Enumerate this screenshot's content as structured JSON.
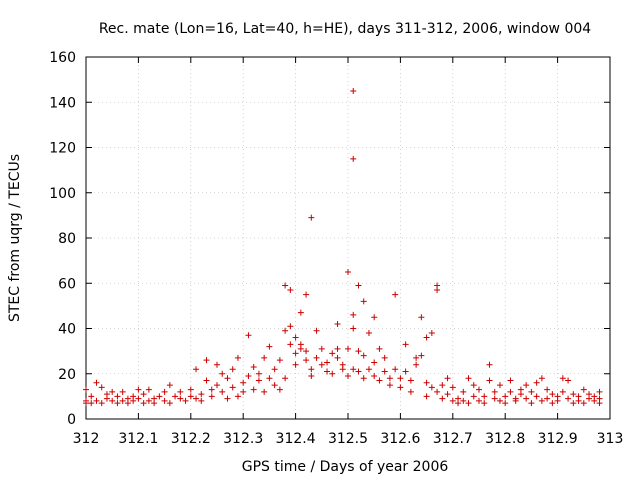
{
  "chart_data": {
    "type": "scatter",
    "title": "Rec. mate (Lon=16, Lat=40, h=HE), days 311-312, 2006, window 004",
    "xlabel": "GPS time / Days of year 2006",
    "ylabel": "STEC from uqrg / TECUs",
    "xlim": [
      312,
      313
    ],
    "ylim": [
      0,
      160
    ],
    "xticks": [
      312,
      312.1,
      312.2,
      312.3,
      312.4,
      312.5,
      312.6,
      312.7,
      312.8,
      312.9,
      313
    ],
    "xtick_labels": [
      "312",
      "312.1",
      "312.2",
      "312.3",
      "312.4",
      "312.5",
      "312.6",
      "312.7",
      "312.8",
      "312.9",
      "313"
    ],
    "yticks": [
      0,
      20,
      40,
      60,
      80,
      100,
      120,
      140,
      160
    ],
    "ytick_labels": [
      "0",
      "20",
      "40",
      "60",
      "80",
      "100",
      "120",
      "140",
      "160"
    ],
    "grid": true,
    "legend": "none",
    "marker_color": "#cc0000",
    "series": [
      {
        "marker": "plus",
        "points": [
          [
            312.0,
            7
          ],
          [
            312.0,
            8
          ],
          [
            312.0,
            13
          ],
          [
            312.01,
            7
          ],
          [
            312.01,
            10
          ],
          [
            312.02,
            16
          ],
          [
            312.02,
            8
          ],
          [
            312.03,
            7
          ],
          [
            312.03,
            14
          ],
          [
            312.04,
            9
          ],
          [
            312.04,
            11
          ],
          [
            312.05,
            8
          ],
          [
            312.05,
            12
          ],
          [
            312.06,
            7
          ],
          [
            312.06,
            10
          ],
          [
            312.07,
            8
          ],
          [
            312.07,
            12
          ],
          [
            312.08,
            9
          ],
          [
            312.08,
            7
          ],
          [
            312.09,
            10
          ],
          [
            312.09,
            8
          ],
          [
            312.1,
            13
          ],
          [
            312.1,
            9
          ],
          [
            312.11,
            7
          ],
          [
            312.11,
            11
          ],
          [
            312.12,
            8
          ],
          [
            312.12,
            13
          ],
          [
            312.13,
            9
          ],
          [
            312.13,
            7
          ],
          [
            312.14,
            10
          ],
          [
            312.15,
            12
          ],
          [
            312.15,
            8
          ],
          [
            312.16,
            15
          ],
          [
            312.16,
            7
          ],
          [
            312.17,
            10
          ],
          [
            312.18,
            9
          ],
          [
            312.18,
            12
          ],
          [
            312.19,
            8
          ],
          [
            312.2,
            10
          ],
          [
            312.2,
            13
          ],
          [
            312.21,
            9
          ],
          [
            312.21,
            22
          ],
          [
            312.22,
            11
          ],
          [
            312.22,
            8
          ],
          [
            312.23,
            17
          ],
          [
            312.23,
            26
          ],
          [
            312.24,
            13
          ],
          [
            312.24,
            10
          ],
          [
            312.25,
            24
          ],
          [
            312.25,
            15
          ],
          [
            312.26,
            12
          ],
          [
            312.26,
            20
          ],
          [
            312.27,
            9
          ],
          [
            312.27,
            18
          ],
          [
            312.28,
            14
          ],
          [
            312.28,
            22
          ],
          [
            312.29,
            10
          ],
          [
            312.29,
            27
          ],
          [
            312.3,
            16
          ],
          [
            312.3,
            12
          ],
          [
            312.31,
            37
          ],
          [
            312.31,
            19
          ],
          [
            312.32,
            13
          ],
          [
            312.32,
            23
          ],
          [
            312.33,
            17
          ],
          [
            312.33,
            20
          ],
          [
            312.34,
            12
          ],
          [
            312.34,
            27
          ],
          [
            312.35,
            18
          ],
          [
            312.35,
            32
          ],
          [
            312.36,
            15
          ],
          [
            312.36,
            22
          ],
          [
            312.37,
            13
          ],
          [
            312.37,
            26
          ],
          [
            312.38,
            39
          ],
          [
            312.38,
            59
          ],
          [
            312.38,
            18
          ],
          [
            312.39,
            33
          ],
          [
            312.39,
            57
          ],
          [
            312.39,
            41
          ],
          [
            312.4,
            29
          ],
          [
            312.4,
            36
          ],
          [
            312.4,
            24
          ],
          [
            312.41,
            47
          ],
          [
            312.41,
            31
          ],
          [
            312.41,
            33
          ],
          [
            312.42,
            26
          ],
          [
            312.42,
            30
          ],
          [
            312.42,
            55
          ],
          [
            312.43,
            22
          ],
          [
            312.43,
            89
          ],
          [
            312.43,
            19
          ],
          [
            312.44,
            39
          ],
          [
            312.44,
            27
          ],
          [
            312.45,
            24
          ],
          [
            312.45,
            31
          ],
          [
            312.46,
            21
          ],
          [
            312.46,
            25
          ],
          [
            312.47,
            29
          ],
          [
            312.47,
            20
          ],
          [
            312.48,
            42
          ],
          [
            312.48,
            31
          ],
          [
            312.48,
            27
          ],
          [
            312.49,
            24
          ],
          [
            312.49,
            22
          ],
          [
            312.5,
            65
          ],
          [
            312.5,
            31
          ],
          [
            312.5,
            19
          ],
          [
            312.51,
            40
          ],
          [
            312.51,
            46
          ],
          [
            312.51,
            22
          ],
          [
            312.51,
            145
          ],
          [
            312.51,
            115
          ],
          [
            312.52,
            30
          ],
          [
            312.52,
            59
          ],
          [
            312.52,
            21
          ],
          [
            312.53,
            52
          ],
          [
            312.53,
            28
          ],
          [
            312.53,
            18
          ],
          [
            312.54,
            38
          ],
          [
            312.54,
            22
          ],
          [
            312.55,
            45
          ],
          [
            312.55,
            25
          ],
          [
            312.55,
            19
          ],
          [
            312.56,
            31
          ],
          [
            312.56,
            17
          ],
          [
            312.57,
            27
          ],
          [
            312.57,
            21
          ],
          [
            312.58,
            18
          ],
          [
            312.58,
            15
          ],
          [
            312.59,
            22
          ],
          [
            312.59,
            55
          ],
          [
            312.6,
            18
          ],
          [
            312.6,
            14
          ],
          [
            312.61,
            33
          ],
          [
            312.61,
            21
          ],
          [
            312.62,
            17
          ],
          [
            312.62,
            12
          ],
          [
            312.63,
            27
          ],
          [
            312.63,
            24
          ],
          [
            312.64,
            28
          ],
          [
            312.64,
            45
          ],
          [
            312.65,
            36
          ],
          [
            312.65,
            16
          ],
          [
            312.65,
            10
          ],
          [
            312.66,
            38
          ],
          [
            312.66,
            14
          ],
          [
            312.67,
            59
          ],
          [
            312.67,
            57
          ],
          [
            312.67,
            12
          ],
          [
            312.68,
            15
          ],
          [
            312.68,
            9
          ],
          [
            312.69,
            18
          ],
          [
            312.69,
            11
          ],
          [
            312.7,
            8
          ],
          [
            312.7,
            14
          ],
          [
            312.71,
            9
          ],
          [
            312.71,
            7
          ],
          [
            312.72,
            12
          ],
          [
            312.72,
            8
          ],
          [
            312.73,
            18
          ],
          [
            312.73,
            7
          ],
          [
            312.74,
            10
          ],
          [
            312.74,
            15
          ],
          [
            312.75,
            8
          ],
          [
            312.75,
            13
          ],
          [
            312.76,
            7
          ],
          [
            312.76,
            10
          ],
          [
            312.77,
            24
          ],
          [
            312.77,
            17
          ],
          [
            312.78,
            9
          ],
          [
            312.78,
            12
          ],
          [
            312.79,
            8
          ],
          [
            312.79,
            15
          ],
          [
            312.8,
            10
          ],
          [
            312.8,
            7
          ],
          [
            312.81,
            12
          ],
          [
            312.81,
            17
          ],
          [
            312.82,
            9
          ],
          [
            312.82,
            8
          ],
          [
            312.83,
            13
          ],
          [
            312.83,
            11
          ],
          [
            312.84,
            9
          ],
          [
            312.84,
            15
          ],
          [
            312.85,
            7
          ],
          [
            312.85,
            12
          ],
          [
            312.86,
            10
          ],
          [
            312.86,
            16
          ],
          [
            312.87,
            8
          ],
          [
            312.87,
            18
          ],
          [
            312.88,
            9
          ],
          [
            312.88,
            13
          ],
          [
            312.89,
            11
          ],
          [
            312.89,
            7
          ],
          [
            312.9,
            10
          ],
          [
            312.9,
            8
          ],
          [
            312.91,
            18
          ],
          [
            312.91,
            12
          ],
          [
            312.92,
            9
          ],
          [
            312.92,
            17
          ],
          [
            312.93,
            7
          ],
          [
            312.93,
            11
          ],
          [
            312.94,
            10
          ],
          [
            312.94,
            8
          ],
          [
            312.95,
            13
          ],
          [
            312.95,
            7
          ],
          [
            312.96,
            9
          ],
          [
            312.96,
            11
          ],
          [
            312.97,
            10
          ],
          [
            312.97,
            8
          ],
          [
            312.98,
            12
          ],
          [
            312.98,
            7
          ],
          [
            312.98,
            9
          ]
        ]
      }
    ]
  }
}
